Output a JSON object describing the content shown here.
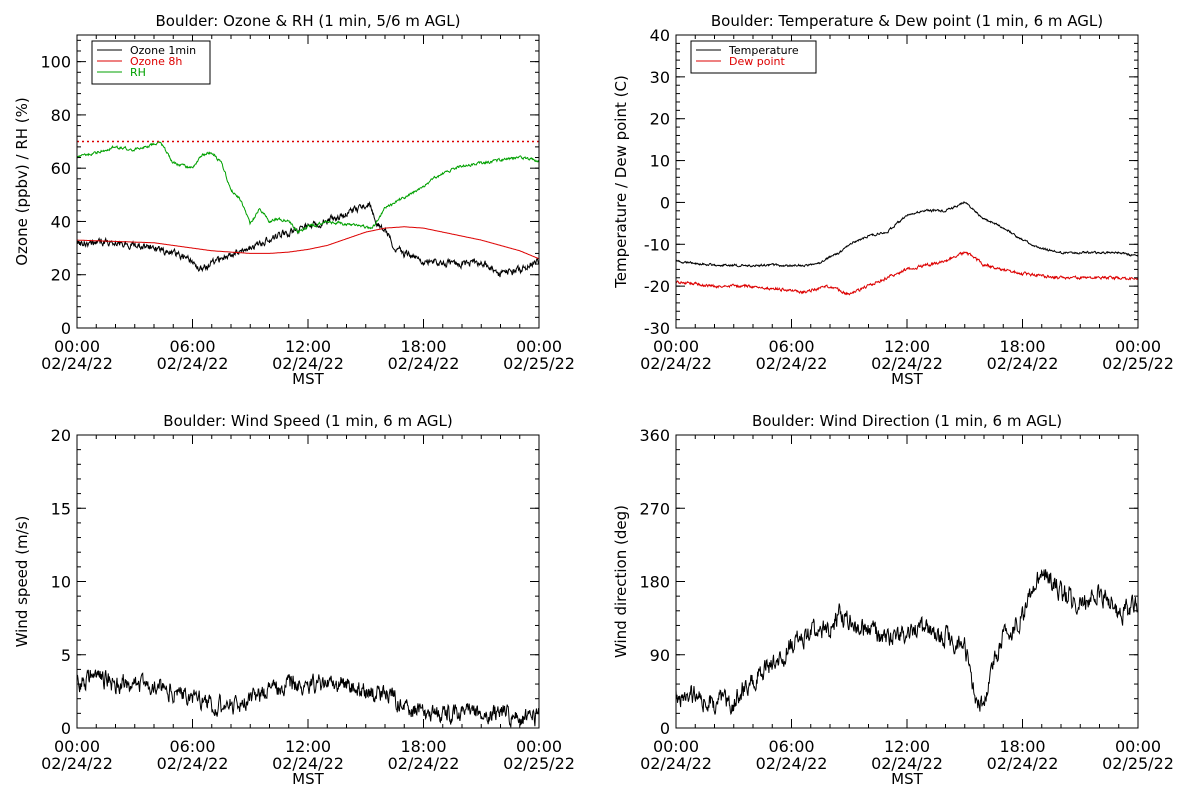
{
  "chart_data": [
    {
      "id": "ozone_rh",
      "type": "line",
      "title": "Boulder: Ozone & RH (1 min, 5/6 m AGL)",
      "xlabel": "MST",
      "ylabel": "Ozone (ppbv) / RH (%)",
      "xlim": [
        0,
        24
      ],
      "ylim": [
        0,
        110
      ],
      "yticks": [
        0,
        20,
        40,
        60,
        80,
        100
      ],
      "x_tick_labels": [
        {
          "time": "00:00",
          "date": "02/24/22"
        },
        {
          "time": "06:00",
          "date": "02/24/22"
        },
        {
          "time": "12:00",
          "date": "02/24/22"
        },
        {
          "time": "18:00",
          "date": "02/24/22"
        },
        {
          "time": "00:00",
          "date": "02/25/22"
        }
      ],
      "legend_position": "top-left",
      "reference_line": {
        "value": 70,
        "color": "#dd0000",
        "style": "dotted"
      },
      "series": [
        {
          "name": "Ozone 1min",
          "color": "#000000",
          "noise": 1.5,
          "x": [
            0,
            1,
            2,
            3,
            4,
            5,
            5.5,
            6,
            6.5,
            7,
            8,
            9,
            10,
            11,
            12,
            13,
            14,
            15,
            15.2,
            15.5,
            16,
            16.5,
            17,
            18,
            19,
            20,
            21,
            22,
            23,
            24
          ],
          "y": [
            32,
            32,
            32,
            31,
            30,
            28,
            27,
            25,
            22,
            24,
            28,
            30,
            33,
            36,
            38,
            40,
            43,
            46,
            47,
            40,
            37,
            30,
            28,
            25,
            24,
            24,
            25,
            20,
            22,
            25
          ]
        },
        {
          "name": "Ozone 8h",
          "color": "#dd0000",
          "noise": 0,
          "x": [
            0,
            2,
            4,
            6,
            7,
            8,
            9,
            10,
            11,
            12,
            13,
            14,
            15,
            16,
            17,
            18,
            19,
            20,
            21,
            22,
            23,
            24
          ],
          "y": [
            33,
            32.5,
            32,
            30,
            29,
            28.5,
            28,
            28,
            28.5,
            29.5,
            31,
            33.5,
            36,
            37.5,
            38,
            37.5,
            36,
            34.5,
            33,
            31,
            29,
            26
          ]
        },
        {
          "name": "RH",
          "color": "#00a000",
          "noise": 0.6,
          "x": [
            0,
            0.5,
            1,
            2,
            3,
            4,
            4.3,
            5,
            6,
            6.5,
            7,
            7.5,
            8,
            8.5,
            9,
            9.5,
            10,
            10.5,
            11,
            11.5,
            12,
            13,
            14,
            15,
            15.3,
            15.6,
            16,
            17,
            18,
            18.5,
            19,
            20,
            21,
            22,
            23,
            24
          ],
          "y": [
            64,
            65,
            66,
            68,
            67,
            69,
            70,
            62,
            60,
            65,
            66,
            62,
            52,
            48,
            39,
            45,
            40,
            41,
            40,
            36,
            38,
            40,
            39,
            38,
            37,
            40,
            45,
            49,
            53,
            56,
            58,
            61,
            62,
            63,
            64,
            63
          ]
        }
      ]
    },
    {
      "id": "temperature_dewpoint",
      "type": "line",
      "title": "Boulder: Temperature & Dew point (1 min, 6 m AGL)",
      "xlabel": "MST",
      "ylabel": "Temperature / Dew point (C)",
      "xlim": [
        0,
        24
      ],
      "ylim": [
        -30,
        40
      ],
      "yticks": [
        -30,
        -20,
        -10,
        0,
        10,
        20,
        30,
        40
      ],
      "x_tick_labels": [
        {
          "time": "00:00",
          "date": "02/24/22"
        },
        {
          "time": "06:00",
          "date": "02/24/22"
        },
        {
          "time": "12:00",
          "date": "02/24/22"
        },
        {
          "time": "18:00",
          "date": "02/24/22"
        },
        {
          "time": "00:00",
          "date": "02/25/22"
        }
      ],
      "legend_position": "top-left",
      "series": [
        {
          "name": "Temperature",
          "color": "#000000",
          "noise": 0.3,
          "x": [
            0,
            1,
            2,
            3,
            4,
            5,
            6,
            7,
            7.5,
            8,
            8.5,
            9,
            9.5,
            10,
            11,
            11.5,
            12,
            13,
            14,
            14.5,
            15,
            15.5,
            16,
            17,
            18,
            19,
            20,
            21,
            22,
            23,
            24
          ],
          "y": [
            -14,
            -14.5,
            -15,
            -15,
            -15,
            -15,
            -15,
            -15,
            -14.5,
            -13,
            -12,
            -10,
            -9,
            -8,
            -7,
            -5,
            -3,
            -2,
            -2,
            -1,
            0,
            -2,
            -4,
            -6,
            -9,
            -11,
            -12,
            -12,
            -12,
            -12,
            -13
          ]
        },
        {
          "name": "Dew point",
          "color": "#dd0000",
          "noise": 0.4,
          "x": [
            0,
            1,
            2,
            3,
            4,
            5,
            6,
            6.5,
            7,
            7.5,
            8,
            8.5,
            9,
            10,
            11,
            12,
            13,
            14,
            15,
            15.5,
            16,
            17,
            18,
            19,
            20,
            21,
            22,
            23,
            24
          ],
          "y": [
            -19,
            -19.5,
            -20,
            -20,
            -20,
            -20.5,
            -21,
            -21.5,
            -21,
            -20.5,
            -20,
            -21,
            -22,
            -20,
            -18,
            -16,
            -15,
            -14,
            -12,
            -13,
            -15,
            -16,
            -17,
            -17.5,
            -18,
            -18,
            -18,
            -18,
            -18.5
          ]
        }
      ]
    },
    {
      "id": "wind_speed",
      "type": "line",
      "title": "Boulder: Wind Speed (1 min, 6 m AGL)",
      "xlabel": "MST",
      "ylabel": "Wind speed (m/s)",
      "xlim": [
        0,
        24
      ],
      "ylim": [
        0,
        20
      ],
      "yticks": [
        0,
        5,
        10,
        15,
        20
      ],
      "x_tick_labels": [
        {
          "time": "00:00",
          "date": "02/24/22"
        },
        {
          "time": "06:00",
          "date": "02/24/22"
        },
        {
          "time": "12:00",
          "date": "02/24/22"
        },
        {
          "time": "18:00",
          "date": "02/24/22"
        },
        {
          "time": "00:00",
          "date": "02/25/22"
        }
      ],
      "legend_position": "none",
      "series": [
        {
          "color": "#000000",
          "noise": 0.7,
          "x": [
            0,
            1,
            2,
            3,
            4,
            5,
            6,
            7,
            8,
            9,
            10,
            11,
            12,
            13,
            14,
            15,
            16,
            17,
            18,
            19,
            20,
            21,
            22,
            23,
            24
          ],
          "y": [
            3,
            3.5,
            3,
            3,
            3,
            2.5,
            2,
            1.5,
            1.5,
            2,
            2.5,
            3,
            3,
            3,
            3,
            2.5,
            2.5,
            1.5,
            1,
            1,
            1,
            1,
            1,
            0.7,
            0.8
          ]
        }
      ]
    },
    {
      "id": "wind_direction",
      "type": "line",
      "title": "Boulder: Wind Direction (1 min, 6 m AGL)",
      "xlabel": "MST",
      "ylabel": "Wind direction (deg)",
      "xlim": [
        0,
        24
      ],
      "ylim": [
        0,
        360
      ],
      "yticks": [
        0,
        90,
        180,
        270,
        360
      ],
      "x_tick_labels": [
        {
          "time": "00:00",
          "date": "02/24/22"
        },
        {
          "time": "06:00",
          "date": "02/24/22"
        },
        {
          "time": "12:00",
          "date": "02/24/22"
        },
        {
          "time": "18:00",
          "date": "02/24/22"
        },
        {
          "time": "00:00",
          "date": "02/25/22"
        }
      ],
      "legend_position": "none",
      "series": [
        {
          "color": "#000000",
          "noise": 14,
          "x": [
            0,
            1,
            2,
            3,
            3.5,
            4,
            5,
            6,
            7,
            8,
            8.5,
            9,
            10,
            11,
            12,
            13,
            14,
            15,
            15.5,
            16,
            16.5,
            17,
            18,
            19,
            20,
            21,
            22,
            23,
            24
          ],
          "y": [
            40,
            40,
            30,
            30,
            50,
            60,
            80,
            100,
            120,
            120,
            140,
            130,
            120,
            110,
            120,
            120,
            110,
            105,
            40,
            30,
            80,
            110,
            140,
            190,
            170,
            150,
            170,
            140,
            150
          ]
        }
      ]
    }
  ]
}
